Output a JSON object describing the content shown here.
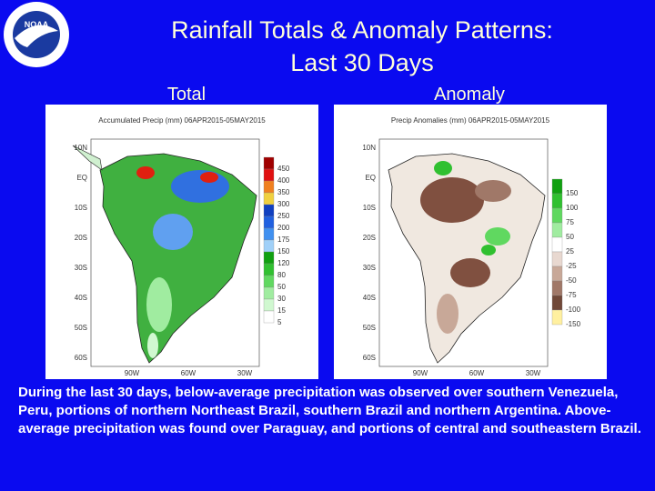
{
  "header": {
    "title": "Rainfall Totals & Anomaly Patterns:",
    "subtitle": "Last 30 Days"
  },
  "panels": [
    {
      "label": "Total",
      "map_title": "Accumulated Precip (mm) 06APR2015-05MAY2015",
      "legend": [
        {
          "label": "450",
          "color": "#a00000"
        },
        {
          "label": "400",
          "color": "#e01010"
        },
        {
          "label": "350",
          "color": "#f08020"
        },
        {
          "label": "300",
          "color": "#f0d040"
        },
        {
          "label": "250",
          "color": "#1040c0"
        },
        {
          "label": "200",
          "color": "#2060e0"
        },
        {
          "label": "175",
          "color": "#4090f0"
        },
        {
          "label": "150",
          "color": "#a0d0f8"
        },
        {
          "label": "120",
          "color": "#10a010"
        },
        {
          "label": "80",
          "color": "#30c030"
        },
        {
          "label": "50",
          "color": "#60d860"
        },
        {
          "label": "30",
          "color": "#a0eca0"
        },
        {
          "label": "15",
          "color": "#d0f8d0"
        },
        {
          "label": "5",
          "color": "#ffffff"
        }
      ]
    },
    {
      "label": "Anomaly",
      "map_title": "Precip Anomalies (mm) 06APR2015-05MAY2015",
      "legend": [
        {
          "label": "150",
          "color": "#10a010"
        },
        {
          "label": "100",
          "color": "#30c030"
        },
        {
          "label": "75",
          "color": "#60d860"
        },
        {
          "label": "50",
          "color": "#a0eca0"
        },
        {
          "label": "25",
          "color": "#ffffff"
        },
        {
          "label": "-25",
          "color": "#e8d8d0"
        },
        {
          "label": "-50",
          "color": "#c8a898"
        },
        {
          "label": "-75",
          "color": "#a07868"
        },
        {
          "label": "-100",
          "color": "#704838"
        },
        {
          "label": "-150",
          "color": "#fff0a0"
        }
      ]
    }
  ],
  "lat_labels": [
    "10N",
    "EQ",
    "10S",
    "20S",
    "30S",
    "40S",
    "50S",
    "60S"
  ],
  "lon_labels": [
    "90W",
    "60W",
    "30W"
  ],
  "caption": "During the last 30 days, below-average precipitation was observed over southern Venezuela, Peru, portions of northern Northeast Brazil, southern Brazil and northern Argentina.  Above-average precipitation was found over Paraguay, and portions of central and southeastern Brazil."
}
